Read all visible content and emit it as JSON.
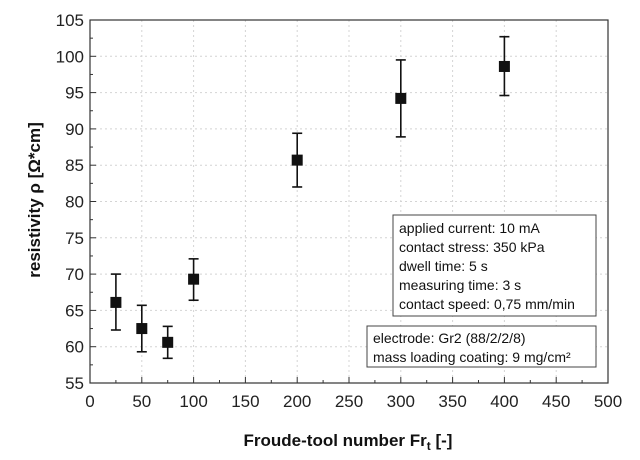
{
  "chart_data": {
    "type": "scatter",
    "xlabel": "Froude-tool number Fr",
    "xlabel_subscript": "t",
    "xlabel_unit": " [-]",
    "ylabel": "resistivity ρ [Ω*cm]",
    "xlim": [
      0,
      500
    ],
    "ylim": [
      55,
      105
    ],
    "xticks": [
      "0",
      "50",
      "100",
      "150",
      "200",
      "250",
      "300",
      "350",
      "400",
      "450",
      "500"
    ],
    "yticks": [
      "55",
      "60",
      "65",
      "70",
      "75",
      "80",
      "85",
      "90",
      "95",
      "100",
      "105"
    ],
    "grid": true,
    "series": [
      {
        "marker": "square",
        "color": "#111111",
        "points": [
          {
            "x": 25,
            "y": 66.1,
            "err_low": 62.3,
            "err_high": 70.0
          },
          {
            "x": 50,
            "y": 62.5,
            "err_low": 59.3,
            "err_high": 65.7
          },
          {
            "x": 75,
            "y": 60.6,
            "err_low": 58.4,
            "err_high": 62.8
          },
          {
            "x": 100,
            "y": 69.3,
            "err_low": 66.4,
            "err_high": 72.1
          },
          {
            "x": 200,
            "y": 85.7,
            "err_low": 82.0,
            "err_high": 89.4
          },
          {
            "x": 300,
            "y": 94.2,
            "err_low": 88.9,
            "err_high": 99.5
          },
          {
            "x": 400,
            "y": 98.6,
            "err_low": 94.6,
            "err_high": 102.7
          }
        ]
      }
    ],
    "annotations": [
      {
        "lines": [
          "applied current: 10 mA",
          "contact stress: 350 kPa",
          "dwell time: 5 s",
          "measuring time: 3 s",
          "contact speed: 0,75 mm/min"
        ]
      },
      {
        "lines": [
          "electrode: Gr2 (88/2/2/8)",
          "mass loading coating: 9 mg/cm²"
        ]
      }
    ]
  }
}
